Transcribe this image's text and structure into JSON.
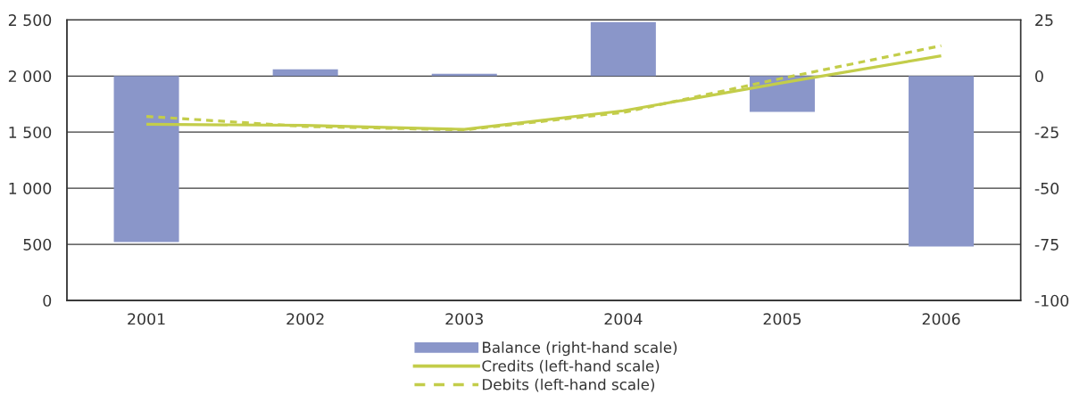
{
  "chart_data": {
    "type": "bar",
    "categories": [
      "2001",
      "2002",
      "2003",
      "2004",
      "2005",
      "2006"
    ],
    "series": [
      {
        "name": "Balance (right-hand scale)",
        "axis": "y2",
        "color": "#8a96c9",
        "values": [
          -74,
          3,
          1,
          24,
          -16,
          -76
        ]
      },
      {
        "name": "Credits (left-hand scale)",
        "type": "line",
        "color": "#c3cd4a",
        "line_style": "solid",
        "values": [
          1570,
          1560,
          1525,
          1690,
          1940,
          2180
        ]
      },
      {
        "name": "Debits (left-hand scale)",
        "type": "line",
        "color": "#c3cd4a",
        "line_style": "dashed",
        "values": [
          1640,
          1550,
          1520,
          1675,
          1980,
          2270
        ]
      }
    ],
    "ylim": [
      0,
      2500
    ],
    "yticks": [
      0,
      500,
      {
        "value": 1000,
        "label": "1 000"
      },
      {
        "value": 1500,
        "label": "1 500"
      },
      {
        "value": 2000,
        "label": "2 000"
      },
      {
        "value": 2500,
        "label": "2 500"
      }
    ],
    "y2lim": [
      -100,
      25
    ],
    "y2ticks": [
      -100,
      -75,
      -50,
      -25,
      0,
      25
    ],
    "grid": "y",
    "legend": "bottom"
  }
}
